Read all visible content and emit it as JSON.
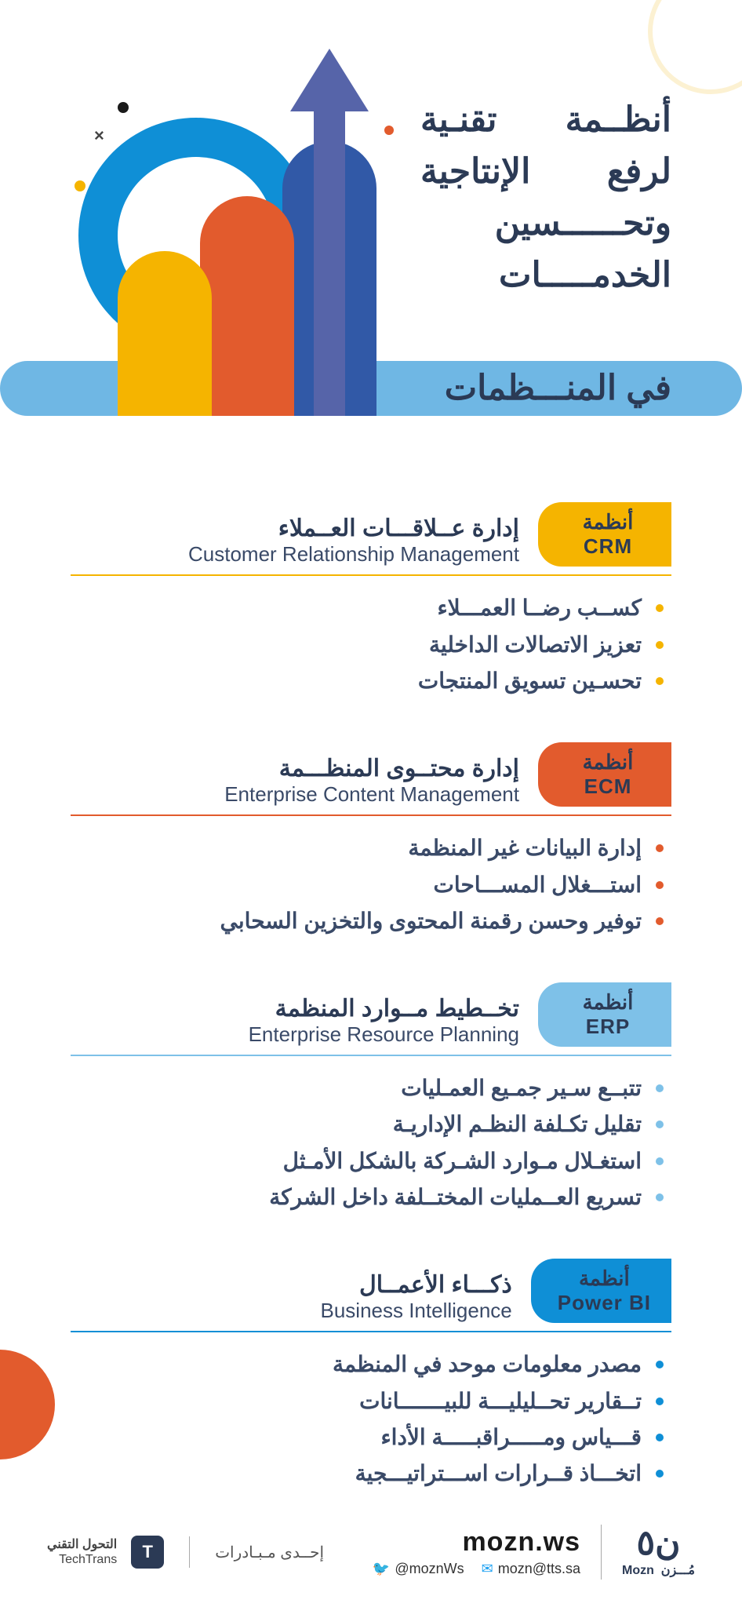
{
  "colors": {
    "yellow": "#f5b400",
    "orange": "#e25b2d",
    "lightblue": "#7ec1e8",
    "blue": "#0f8fd6",
    "darkblue": "#2b3a55",
    "indigo": "#5664a9"
  },
  "header": {
    "title_lines": [
      "أنظــمة تقنـية",
      "لرفع الإنتاجية",
      "وتحــــــسين",
      "الخدمـــــات"
    ],
    "title_bar": "في المنـــظمات"
  },
  "sections": [
    {
      "pill_ar": "أنظمة",
      "pill_en": "CRM",
      "title_ar": "إدارة عــلاقـــات العــملاء",
      "title_en": "Customer Relationship Management",
      "color": "#f5b400",
      "bullets": [
        "كســب رضــا العمـــلاء",
        "تعزيز الاتصالات الداخلية",
        "تحسـين تسويق المنتجات"
      ]
    },
    {
      "pill_ar": "أنظمة",
      "pill_en": "ECM",
      "title_ar": "إدارة محتــوى المنظـــمة",
      "title_en": "Enterprise Content Management",
      "color": "#e25b2d",
      "bullets": [
        "إدارة البيانات غير المنظمة",
        "استـــغلال المســـاحات",
        "توفير وحسن رقمنة المحتوى والتخزين السحابي"
      ]
    },
    {
      "pill_ar": "أنظمة",
      "pill_en": "ERP",
      "title_ar": "تخــطيط مــوارد المنظمة",
      "title_en": "Enterprise Resource Planning",
      "color": "#7ec1e8",
      "bullets": [
        "تتبــع سـير جمـيع العمـليات",
        "تقليل تكـلفة النظـم الإداريـة",
        "استغـلال مـوارد الشـركة بالشكل الأمـثل",
        "تسريع العــمليات المختــلفة داخل الشركة"
      ]
    },
    {
      "pill_ar": "أنظمة",
      "pill_en": "Power BI",
      "title_ar": "ذكـــاء الأعمــال",
      "title_en": "Business Intelligence",
      "color": "#0f8fd6",
      "bullets": [
        "مصدر معلومات موحد في المنظمة",
        "تــقارير تحــليليـــة للبيـــــــانات",
        "قـــياس ومـــــراقبـــــة الأداء",
        "اتخـــاذ قــرارات اســـتراتيـــجية"
      ]
    }
  ],
  "footer": {
    "initiative": "إحــدى مـبـادرات",
    "techtrans_ar": "التحول التقني",
    "techtrans_en": "TechTrans",
    "site": "mozn.ws",
    "twitter": "@moznWs",
    "email": "mozn@tts.sa",
    "brand_en": "Mozn",
    "brand_ar": "مُـــزن"
  }
}
